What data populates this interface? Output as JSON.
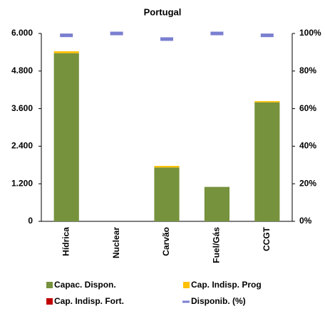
{
  "chart_data": {
    "type": "bar",
    "title": "Portugal",
    "categories": [
      "Hídrica",
      "Nuclear",
      "Carvão",
      "Fuel/Gás",
      "CCGT"
    ],
    "series": [
      {
        "name": "Capac. Dispon.",
        "color": "#76923c",
        "values": [
          5370,
          0,
          1720,
          1100,
          3800
        ]
      },
      {
        "name": "Cap. Indisp. Prog",
        "color": "#ffc000",
        "values": [
          60,
          0,
          50,
          0,
          40
        ]
      },
      {
        "name": "Cap. Indisp. Fort.",
        "color": "#c00000",
        "values": [
          0,
          0,
          0,
          0,
          0
        ]
      },
      {
        "name": "Disponib. (%)",
        "color": "#7b7fd0",
        "axis": "y2",
        "values": [
          99,
          100,
          97,
          100,
          99
        ]
      }
    ],
    "ylim": [
      0,
      6000
    ],
    "yticks": [
      0,
      {
        "value": 1200,
        "label": "1.200"
      },
      {
        "value": 2400,
        "label": "2.400"
      },
      {
        "value": 3600,
        "label": "3.600"
      },
      {
        "value": 4800,
        "label": "4.800"
      },
      {
        "value": 6000,
        "label": "6.000"
      }
    ],
    "y2lim": [
      0,
      100
    ],
    "y2ticks": [
      {
        "value": 0,
        "label": "0%"
      },
      {
        "value": 20,
        "label": "20%"
      },
      {
        "value": 40,
        "label": "40%"
      },
      {
        "value": 60,
        "label": "60%"
      },
      {
        "value": 80,
        "label": "80%"
      },
      {
        "value": 100,
        "label": "100%"
      }
    ],
    "stacked": true
  }
}
